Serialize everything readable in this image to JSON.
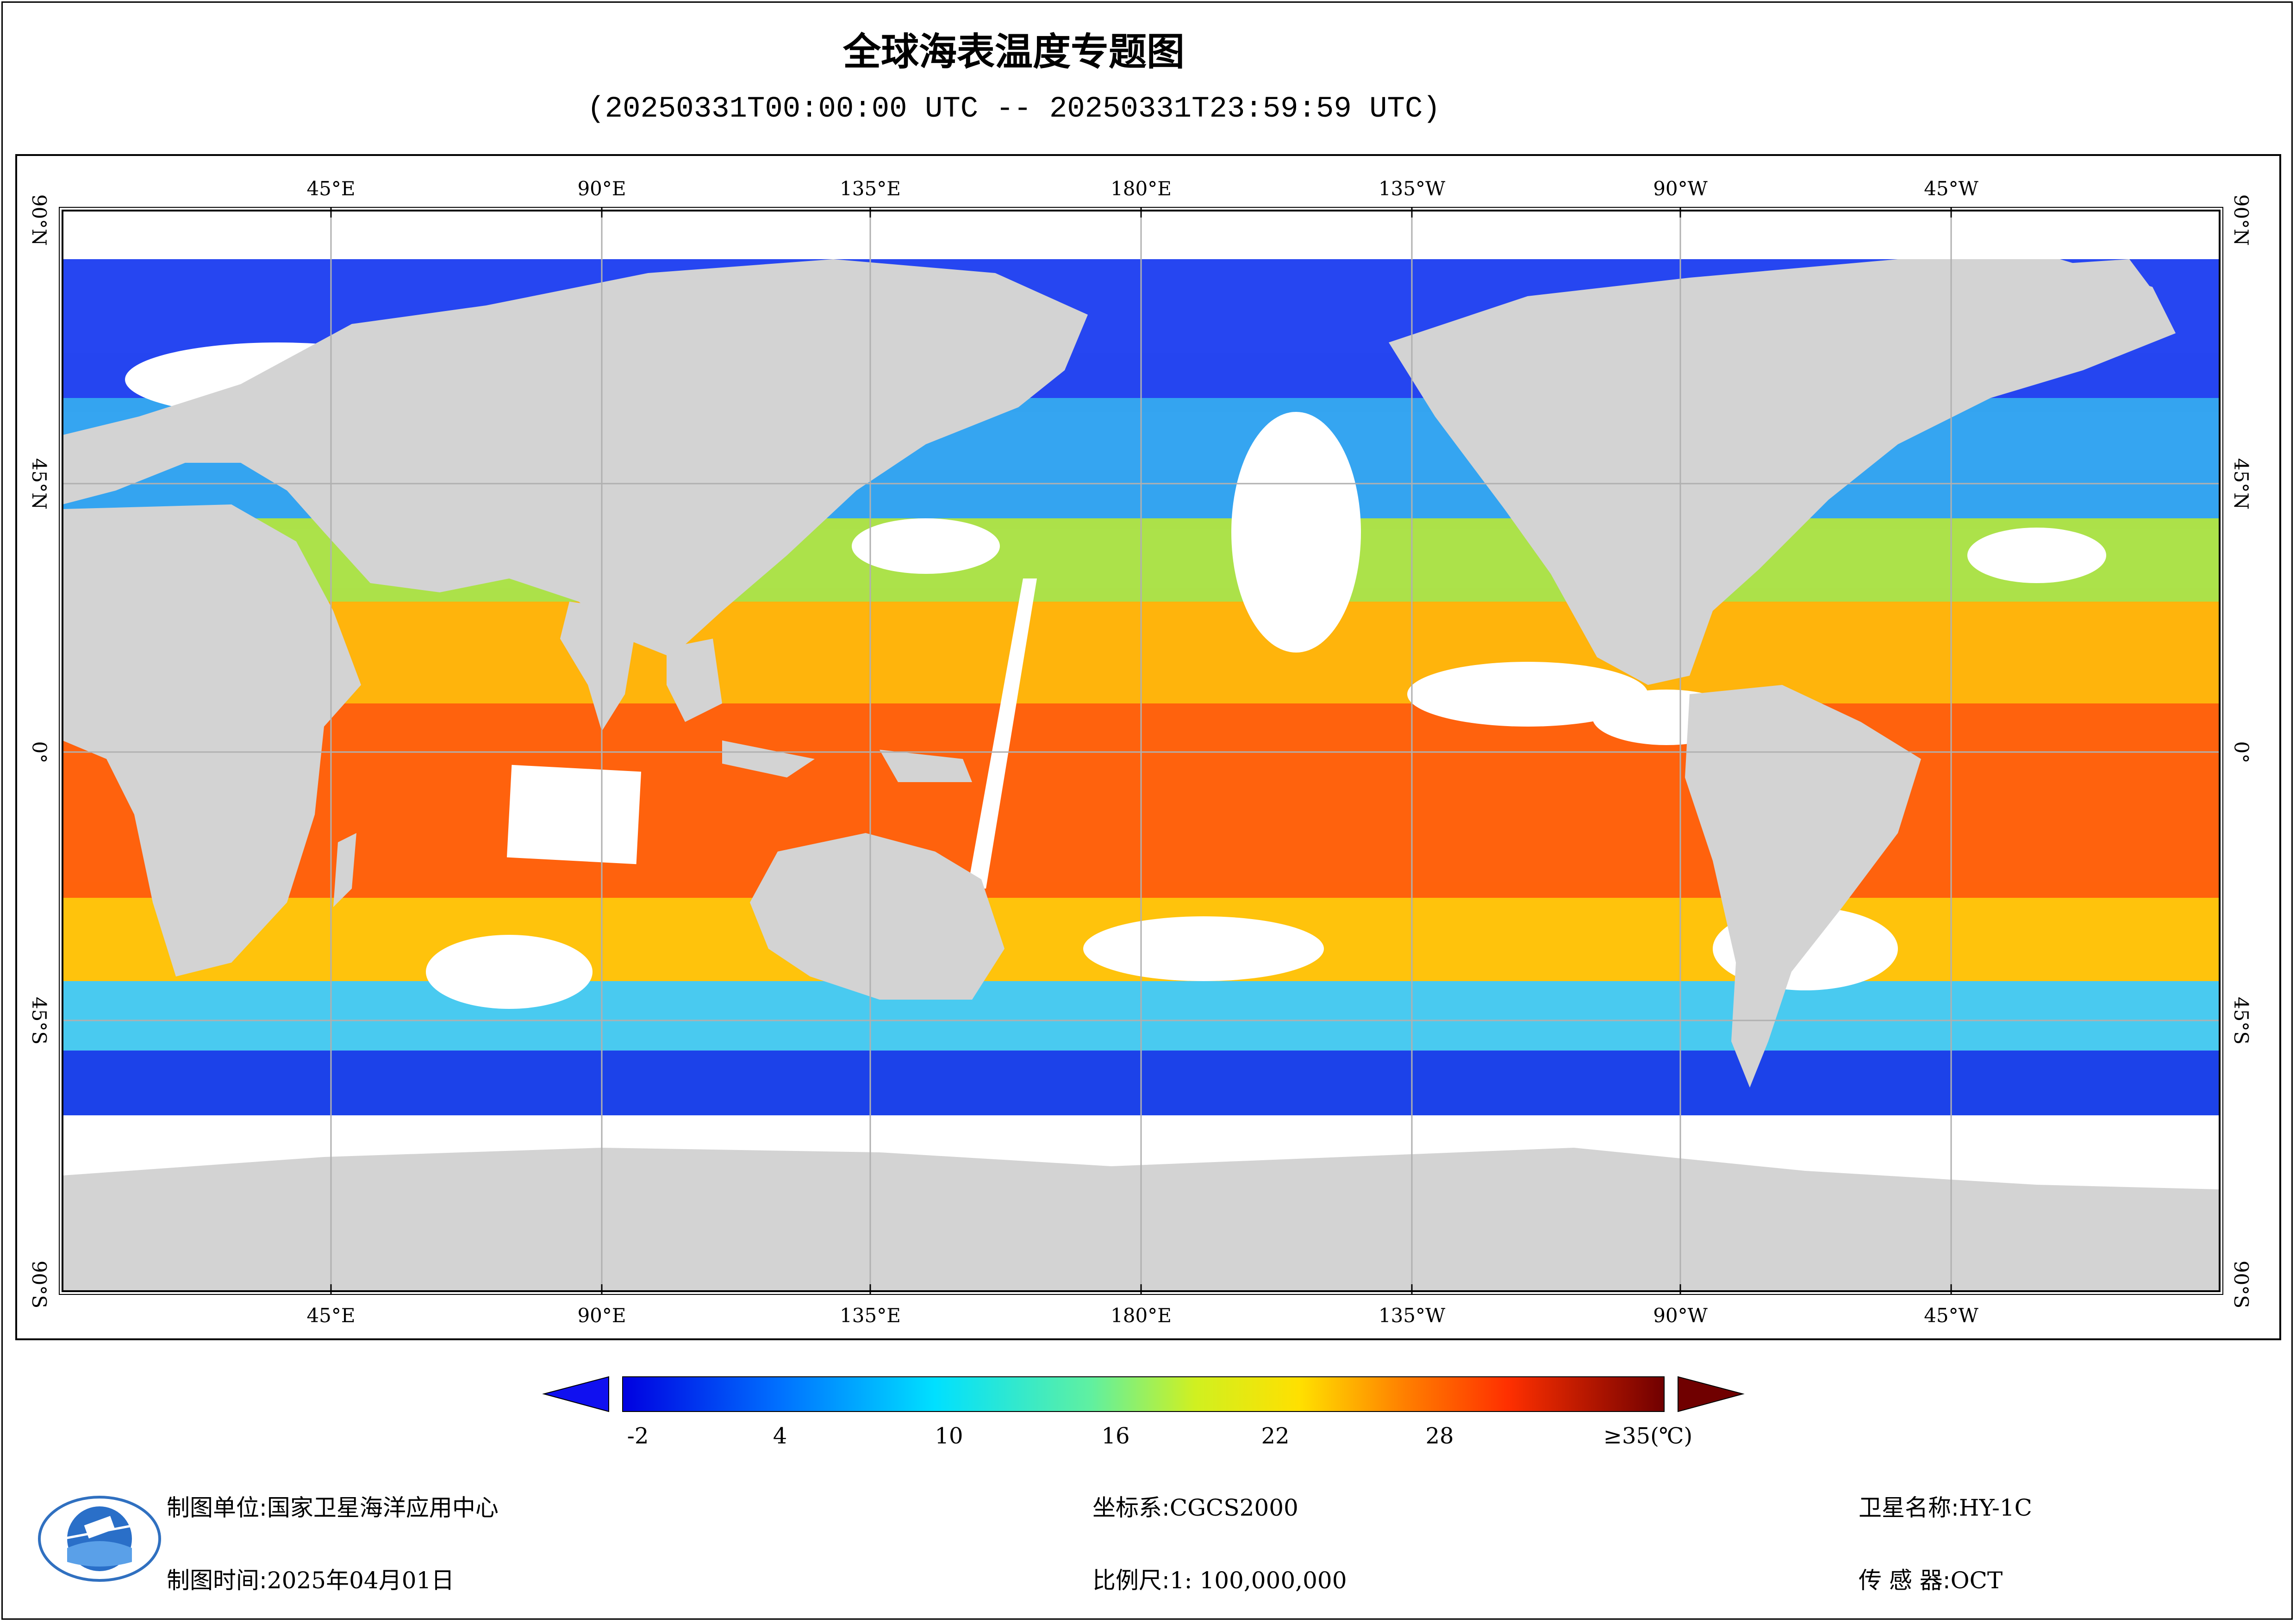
{
  "header": {
    "title": "全球海表温度专题图",
    "subtitle": "(20250331T00:00:00 UTC -- 20250331T23:59:59 UTC)"
  },
  "map": {
    "lon_ticks": [
      "45°E",
      "90°E",
      "135°E",
      "180°E",
      "135°W",
      "90°W",
      "45°W"
    ],
    "lat_ticks": [
      "90°N",
      "45°N",
      "0°",
      "45°S",
      "90°S"
    ],
    "colors": {
      "land": "#d3d3d3",
      "no_data": "#ffffff",
      "grid": "#b0b0b0"
    }
  },
  "colorbar": {
    "labels": [
      "-2",
      "4",
      "10",
      "16",
      "22",
      "28",
      "≥35(℃)"
    ],
    "min": -2,
    "max": 35,
    "under_color": "#1010f0",
    "over_color": "#700000"
  },
  "footer": {
    "org_label": "制图单位:",
    "org_value": "国家卫星海洋应用中心",
    "date_label": "制图时间:",
    "date_value": "2025年04月01日",
    "crs_label": "坐标系:",
    "crs_value": "CGCS2000",
    "scale_label": "比例尺:",
    "scale_value": "1: 100,000,000",
    "satellite_label": "卫星名称:",
    "satellite_value": "HY-1C",
    "sensor_label": "传 感 器:",
    "sensor_value": "OCT"
  }
}
